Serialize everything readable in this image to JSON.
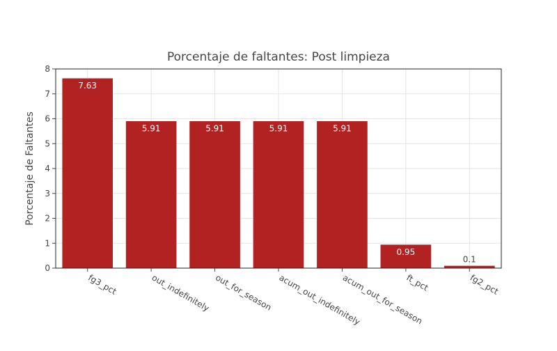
{
  "chart_data": {
    "type": "bar",
    "title": "Porcentaje de faltantes: Post limpieza",
    "xlabel": "",
    "ylabel": "Porcentaje de Faltantes",
    "categories": [
      "fg3_pct",
      "out_indefinitely",
      "out_for_season",
      "acum_out_indefinitely",
      "acum_out_for_season",
      "ft_pct",
      "fg2_pct"
    ],
    "values": [
      7.63,
      5.91,
      5.91,
      5.91,
      5.91,
      0.95,
      0.1
    ],
    "data_labels": [
      "7.63",
      "5.91",
      "5.91",
      "5.91",
      "5.91",
      "0.95",
      "0.1"
    ],
    "ylim": [
      0,
      8
    ],
    "yticks": [
      0,
      1,
      2,
      3,
      4,
      5,
      6,
      7,
      8
    ],
    "grid": true,
    "bar_color": "#b22222"
  }
}
